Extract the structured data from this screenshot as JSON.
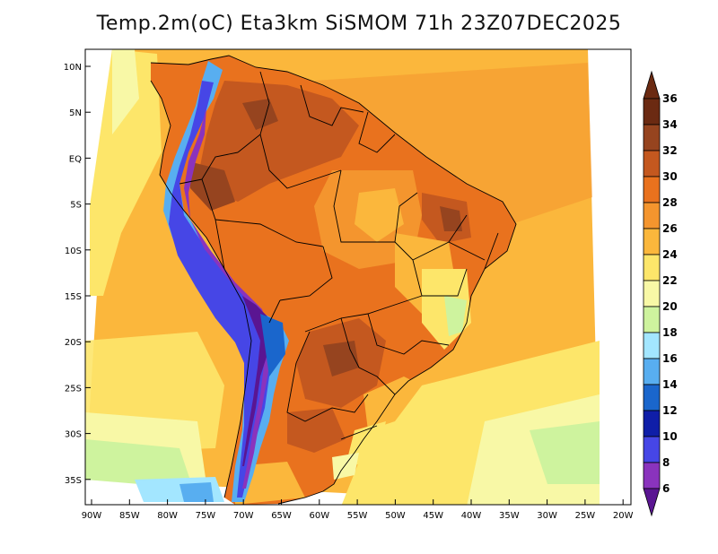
{
  "title": "Temp.2m(oC) Eta3km SiSMOM 71h 23Z07DEC2025",
  "lat_ticks": [
    "10N",
    "5N",
    "EQ",
    "5S",
    "10S",
    "15S",
    "20S",
    "25S",
    "30S",
    "35S"
  ],
  "lon_ticks": [
    "90W",
    "85W",
    "80W",
    "75W",
    "70W",
    "65W",
    "60W",
    "55W",
    "50W",
    "45W",
    "40W",
    "35W",
    "30W",
    "25W",
    "20W"
  ],
  "colorbar": {
    "labels": [
      "36",
      "34",
      "32",
      "30",
      "28",
      "26",
      "24",
      "22",
      "20",
      "18",
      "16",
      "14",
      "12",
      "10",
      "8",
      "6"
    ],
    "colors": [
      "#6b2a12",
      "#96441f",
      "#c4581f",
      "#e9721e",
      "#f4952e",
      "#fbb73c",
      "#fde66a",
      "#f8f8a6",
      "#cef39e",
      "#a3e6ff",
      "#58aef0",
      "#1a66cc",
      "#0f1ea8",
      "#4646e6",
      "#8a33bd",
      "#5a1592"
    ]
  }
}
